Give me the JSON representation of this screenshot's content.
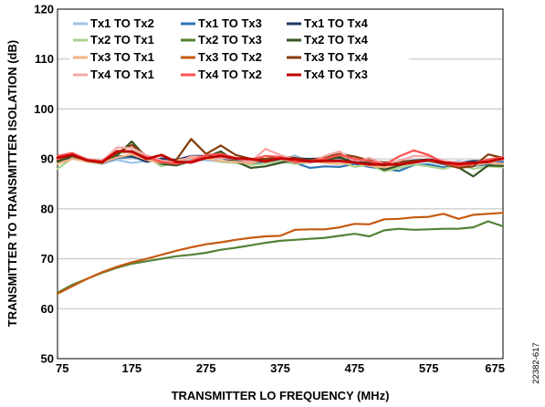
{
  "chart_data": {
    "type": "line",
    "title": "",
    "xlabel": "TRANSMITTER LO FREQUENCY (MHz)",
    "ylabel": "TRANSMITTER TO TRANSMITTER ISOLATION (dB)",
    "xlim": [
      75,
      675
    ],
    "ylim": [
      50,
      120
    ],
    "xticks": [
      75,
      175,
      275,
      375,
      475,
      575,
      675
    ],
    "yticks": [
      50,
      60,
      70,
      80,
      90,
      100,
      110,
      120
    ],
    "grid": "horizontal",
    "legend_position": "top-left",
    "figure_id": "22382-617",
    "x": [
      75,
      95,
      115,
      135,
      155,
      175,
      195,
      215,
      235,
      255,
      275,
      295,
      315,
      335,
      355,
      375,
      395,
      415,
      435,
      455,
      475,
      495,
      515,
      535,
      555,
      575,
      595,
      615,
      635,
      655,
      675
    ],
    "series": [
      {
        "name": "Tx1 TO Tx2",
        "color": "#9dc3e6",
        "width": 2.2,
        "values": [
          89.5,
          90.5,
          89.8,
          89.3,
          89.8,
          89.2,
          89.6,
          89.8,
          89.4,
          90.0,
          89.7,
          89.5,
          89.9,
          89.3,
          89.8,
          89.7,
          90.7,
          89.3,
          89.6,
          89.5,
          89.6,
          89.8,
          88.7,
          89.0,
          89.3,
          89.5,
          88.8,
          89.6,
          88.7,
          89.3,
          89.0
        ]
      },
      {
        "name": "Tx1 TO Tx3",
        "color": "#2e75b6",
        "width": 2.2,
        "values": [
          89.6,
          90.3,
          89.5,
          89.0,
          90.2,
          90.4,
          89.8,
          89.6,
          89.2,
          89.4,
          90.1,
          89.5,
          89.3,
          89.0,
          89.5,
          89.7,
          89.2,
          88.2,
          88.5,
          88.4,
          89.0,
          88.4,
          88.0,
          87.6,
          88.8,
          88.9,
          88.3,
          88.7,
          88.6,
          88.9,
          89.5
        ]
      },
      {
        "name": "Tx1 TO Tx4",
        "color": "#1f3864",
        "width": 2.2,
        "values": [
          89.7,
          90.4,
          89.7,
          89.3,
          90.5,
          90.6,
          89.4,
          90.1,
          89.8,
          90.6,
          90.6,
          90.2,
          89.6,
          89.2,
          89.8,
          90.0,
          90.1,
          90.0,
          90.1,
          90.2,
          89.5,
          89.1,
          88.7,
          89.4,
          89.7,
          89.9,
          89.5,
          89.2,
          89.6,
          89.5,
          90.2
        ]
      },
      {
        "name": "Tx2 TO Tx1",
        "color": "#a9d18e",
        "width": 2.2,
        "values": [
          88.0,
          90.2,
          89.4,
          89.0,
          91.0,
          91.6,
          90.5,
          88.5,
          89.4,
          89.5,
          90.3,
          89.4,
          89.2,
          88.8,
          89.1,
          89.5,
          89.0,
          89.3,
          89.8,
          89.6,
          88.4,
          88.9,
          87.5,
          88.2,
          88.9,
          88.5,
          88.0,
          88.8,
          88.0,
          88.5,
          88.3
        ]
      },
      {
        "name": "Tx2 TO Tx3",
        "color": "#548235",
        "width": 2.2,
        "values": [
          63.2,
          64.8,
          66.0,
          67.2,
          68.2,
          69.0,
          69.5,
          70.0,
          70.5,
          70.8,
          71.2,
          71.8,
          72.2,
          72.7,
          73.2,
          73.6,
          73.8,
          74.0,
          74.2,
          74.6,
          75.0,
          74.5,
          75.7,
          76.0,
          75.8,
          75.9,
          76.0,
          76.0,
          76.3,
          77.5,
          76.5
        ]
      },
      {
        "name": "Tx2 TO Tx4",
        "color": "#375623",
        "width": 2.2,
        "values": [
          89.4,
          90.6,
          89.6,
          89.2,
          90.7,
          93.5,
          90.2,
          89.0,
          88.7,
          89.6,
          90.4,
          91.5,
          89.5,
          88.2,
          88.5,
          89.2,
          89.8,
          89.8,
          89.7,
          90.4,
          89.2,
          89.3,
          87.8,
          88.7,
          89.4,
          89.6,
          89.0,
          88.3,
          86.5,
          88.7,
          88.6
        ]
      },
      {
        "name": "Tx3 TO Tx1",
        "color": "#f4b183",
        "width": 2.2,
        "values": [
          89.0,
          90.0,
          89.5,
          89.2,
          90.3,
          90.9,
          89.8,
          89.2,
          89.7,
          90.2,
          90.0,
          89.6,
          89.4,
          89.1,
          90.0,
          89.9,
          89.5,
          89.6,
          89.2,
          89.0,
          89.3,
          88.6,
          88.3,
          89.0,
          89.3,
          89.7,
          89.0,
          89.2,
          88.7,
          89.2,
          89.0
        ]
      },
      {
        "name": "Tx3 TO Tx2",
        "color": "#c55a11",
        "width": 2.2,
        "values": [
          63.0,
          64.5,
          66.0,
          67.3,
          68.4,
          69.3,
          70.0,
          70.8,
          71.6,
          72.3,
          72.9,
          73.3,
          73.8,
          74.2,
          74.5,
          74.6,
          75.8,
          75.9,
          75.9,
          76.3,
          77.0,
          76.9,
          77.9,
          78.0,
          78.3,
          78.4,
          79.0,
          78.0,
          78.8,
          79.0,
          79.2
        ]
      },
      {
        "name": "Tx3 TO Tx4",
        "color": "#843c0c",
        "width": 2.2,
        "values": [
          89.8,
          90.8,
          89.8,
          89.4,
          91.2,
          92.8,
          90.6,
          89.3,
          89.8,
          94.0,
          91.0,
          92.7,
          90.8,
          90.0,
          90.0,
          90.4,
          90.2,
          89.7,
          90.4,
          91.0,
          90.5,
          89.7,
          89.3,
          89.4,
          89.6,
          89.8,
          89.0,
          88.2,
          88.5,
          90.9,
          90.2
        ]
      },
      {
        "name": "Tx4 TO Tx1",
        "color": "#f4a6a6",
        "width": 2.2,
        "values": [
          90.0,
          91.0,
          90.0,
          89.5,
          92.3,
          92.2,
          90.7,
          89.7,
          89.2,
          90.5,
          90.4,
          90.2,
          90.0,
          89.4,
          92.0,
          90.8,
          89.8,
          89.2,
          90.6,
          91.5,
          89.4,
          90.2,
          89.0,
          89.6,
          90.6,
          90.5,
          89.6,
          89.3,
          89.2,
          89.7,
          89.8
        ]
      },
      {
        "name": "Tx4 TO Tx2",
        "color": "#ff5050",
        "width": 2.2,
        "values": [
          90.6,
          91.2,
          89.8,
          89.6,
          91.6,
          91.3,
          90.4,
          89.4,
          89.0,
          89.6,
          90.8,
          91.0,
          90.2,
          89.8,
          90.6,
          90.4,
          89.3,
          89.6,
          90.0,
          90.8,
          90.0,
          89.6,
          88.8,
          90.5,
          91.7,
          90.8,
          89.2,
          88.6,
          89.0,
          89.9,
          90.3
        ]
      },
      {
        "name": "Tx4 TO Tx3",
        "color": "#c00000",
        "width": 2.8,
        "values": [
          90.2,
          90.8,
          89.7,
          89.3,
          91.5,
          91.5,
          90.0,
          90.8,
          89.4,
          89.3,
          90.2,
          90.6,
          90.1,
          90.0,
          89.5,
          90.1,
          89.9,
          89.5,
          89.6,
          89.6,
          89.3,
          88.9,
          88.9,
          88.9,
          89.3,
          89.8,
          89.3,
          89.0,
          89.2,
          89.4,
          90.1
        ]
      }
    ],
    "legend_rows": [
      [
        "Tx1 TO Tx2",
        "Tx1 TO Tx3",
        "Tx1 TO Tx4"
      ],
      [
        "Tx2 TO Tx1",
        "Tx2 TO Tx3",
        "Tx2 TO Tx4"
      ],
      [
        "Tx3 TO Tx1",
        "Tx3 TO Tx2",
        "Tx3 TO Tx4"
      ],
      [
        "Tx4 TO Tx1",
        "Tx4 TO Tx2",
        "Tx4 TO Tx3"
      ]
    ]
  }
}
